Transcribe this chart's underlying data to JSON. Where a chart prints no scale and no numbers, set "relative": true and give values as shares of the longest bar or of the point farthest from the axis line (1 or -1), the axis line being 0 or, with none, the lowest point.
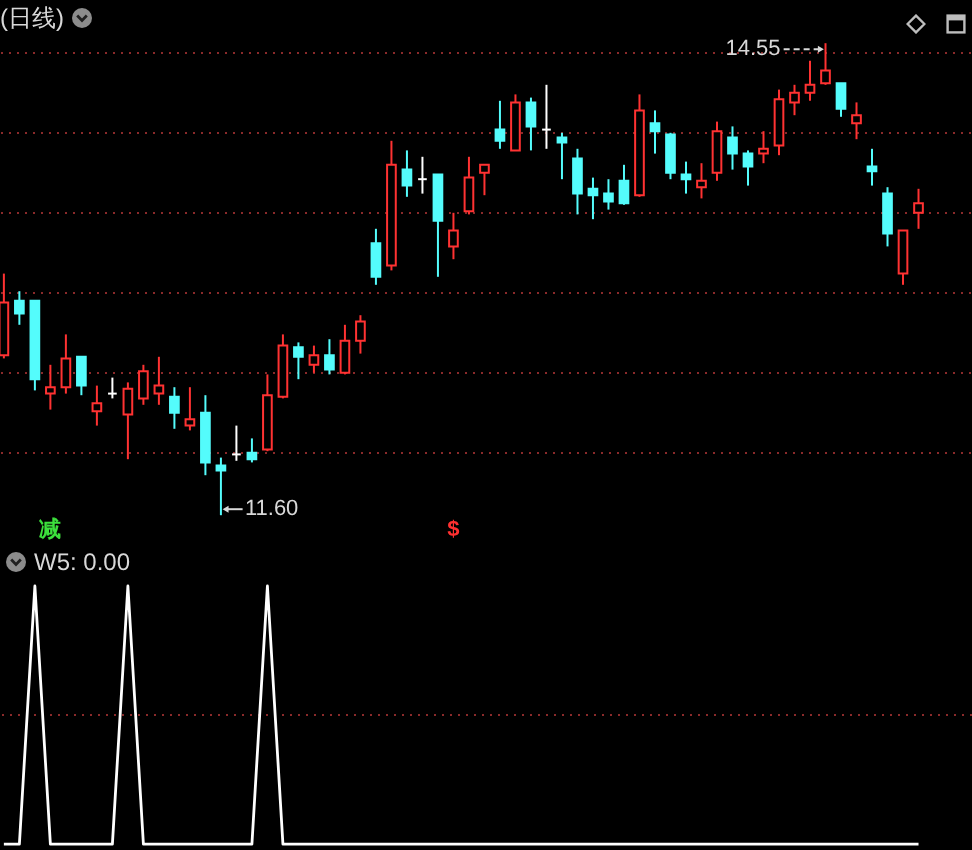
{
  "chart_data": [
    {
      "type": "candlestick",
      "title": "(日线)",
      "categories": [
        null,
        null,
        null,
        null,
        null,
        null,
        null,
        null,
        null,
        null,
        null,
        null,
        null,
        null,
        null,
        null,
        null,
        null,
        null,
        null,
        null,
        null,
        null,
        null,
        null,
        null,
        null,
        null,
        null,
        null,
        null,
        null,
        null,
        null,
        null,
        null,
        null,
        null,
        null,
        null,
        null,
        null,
        null,
        null,
        null,
        null,
        null,
        null,
        null,
        null,
        null,
        null,
        null,
        null,
        null,
        null,
        null,
        null,
        null,
        null
      ],
      "ohlc": [
        [
          12.6,
          13.11,
          12.58,
          12.93
        ],
        [
          12.94,
          13.0,
          12.79,
          12.86
        ],
        [
          12.94,
          12.94,
          12.38,
          12.45
        ],
        [
          12.36,
          12.54,
          12.26,
          12.4
        ],
        [
          12.4,
          12.73,
          12.36,
          12.58
        ],
        [
          12.59,
          12.59,
          12.35,
          12.41
        ],
        [
          12.25,
          12.41,
          12.16,
          12.3
        ],
        [
          12.36,
          12.46,
          12.33,
          12.36
        ],
        [
          12.23,
          12.43,
          11.95,
          12.39
        ],
        [
          12.33,
          12.54,
          12.29,
          12.5
        ],
        [
          12.36,
          12.59,
          12.29,
          12.41
        ],
        [
          12.34,
          12.4,
          12.14,
          12.24
        ],
        [
          12.16,
          12.4,
          12.13,
          12.2
        ],
        [
          12.24,
          12.35,
          11.85,
          11.93
        ],
        [
          11.91,
          11.96,
          11.6,
          11.88
        ],
        [
          11.98,
          12.16,
          11.94,
          11.98
        ],
        [
          11.99,
          12.08,
          11.93,
          11.95
        ],
        [
          12.01,
          12.48,
          12.0,
          12.35
        ],
        [
          12.34,
          12.73,
          12.33,
          12.66
        ],
        [
          12.65,
          12.68,
          12.45,
          12.59
        ],
        [
          12.54,
          12.66,
          12.49,
          12.6
        ],
        [
          12.6,
          12.7,
          12.48,
          12.51
        ],
        [
          12.49,
          12.79,
          12.48,
          12.69
        ],
        [
          12.69,
          12.85,
          12.61,
          12.81
        ],
        [
          13.3,
          13.39,
          13.04,
          13.09
        ],
        [
          13.16,
          13.94,
          13.13,
          13.79
        ],
        [
          13.76,
          13.88,
          13.59,
          13.66
        ],
        [
          13.7,
          13.84,
          13.61,
          13.7
        ],
        [
          13.73,
          13.73,
          13.09,
          13.44
        ],
        [
          13.28,
          13.49,
          13.2,
          13.38
        ],
        [
          13.5,
          13.84,
          13.48,
          13.71
        ],
        [
          13.74,
          13.79,
          13.6,
          13.79
        ],
        [
          14.01,
          14.19,
          13.89,
          13.94
        ],
        [
          13.88,
          14.23,
          13.88,
          14.18
        ],
        [
          14.18,
          14.21,
          13.88,
          14.03
        ],
        [
          14.01,
          14.29,
          13.89,
          14.01
        ],
        [
          13.96,
          13.99,
          13.7,
          13.93
        ],
        [
          13.83,
          13.89,
          13.48,
          13.61
        ],
        [
          13.64,
          13.71,
          13.45,
          13.6
        ],
        [
          13.61,
          13.7,
          13.51,
          13.56
        ],
        [
          13.69,
          13.79,
          13.54,
          13.55
        ],
        [
          13.6,
          14.23,
          13.59,
          14.13
        ],
        [
          14.05,
          14.13,
          13.86,
          14.0
        ],
        [
          13.98,
          13.99,
          13.7,
          13.74
        ],
        [
          13.73,
          13.81,
          13.61,
          13.7
        ],
        [
          13.65,
          13.8,
          13.58,
          13.69
        ],
        [
          13.74,
          14.06,
          13.69,
          14.0
        ],
        [
          13.96,
          14.03,
          13.76,
          13.86
        ],
        [
          13.86,
          13.88,
          13.66,
          13.78
        ],
        [
          13.86,
          14.0,
          13.8,
          13.89
        ],
        [
          13.91,
          14.26,
          13.85,
          14.2
        ],
        [
          14.18,
          14.29,
          14.1,
          14.24
        ],
        [
          14.24,
          14.44,
          14.19,
          14.29
        ],
        [
          14.3,
          14.55,
          14.29,
          14.38
        ],
        [
          14.3,
          14.3,
          14.09,
          14.14
        ],
        [
          14.05,
          14.18,
          13.95,
          14.1
        ],
        [
          13.78,
          13.89,
          13.66,
          13.75
        ],
        [
          13.61,
          13.65,
          13.28,
          13.36
        ],
        [
          13.11,
          13.38,
          13.04,
          13.38
        ],
        [
          13.49,
          13.64,
          13.39,
          13.55
        ]
      ],
      "colors": [
        "#ff3232",
        "#54fcfc",
        "#54fcfc",
        "#ff3232",
        "#ff3232",
        "#54fcfc",
        "#ff3232",
        "#ffffff",
        "#ff3232",
        "#ff3232",
        "#ff3232",
        "#54fcfc",
        "#ff3232",
        "#54fcfc",
        "#54fcfc",
        "#ffffff",
        "#54fcfc",
        "#ff3232",
        "#ff3232",
        "#54fcfc",
        "#ff3232",
        "#54fcfc",
        "#ff3232",
        "#ff3232",
        "#54fcfc",
        "#ff3232",
        "#54fcfc",
        "#ffffff",
        "#54fcfc",
        "#ff3232",
        "#ff3232",
        "#ff3232",
        "#54fcfc",
        "#ff3232",
        "#54fcfc",
        "#ffffff",
        "#54fcfc",
        "#54fcfc",
        "#54fcfc",
        "#54fcfc",
        "#54fcfc",
        "#ff3232",
        "#54fcfc",
        "#54fcfc",
        "#54fcfc",
        "#ff3232",
        "#ff3232",
        "#54fcfc",
        "#54fcfc",
        "#ff3232",
        "#ff3232",
        "#ff3232",
        "#ff3232",
        "#ff3232",
        "#54fcfc",
        "#ff3232",
        "#54fcfc",
        "#54fcfc",
        "#ff3232",
        "#ff3232"
      ],
      "ylim": [
        11.42,
        14.82
      ],
      "yticks": [
        {
          "value": 12,
          "label": null
        },
        {
          "value": 12.5,
          "label": null
        },
        {
          "value": 13,
          "label": null
        },
        {
          "value": 13.5,
          "label": null
        },
        {
          "value": 14,
          "label": null
        },
        {
          "value": 14.5,
          "label": null
        }
      ],
      "grid": "y",
      "annotations": [
        "14.55",
        "11.60",
        "减",
        "$"
      ]
    },
    {
      "type": "line",
      "title": "W5: 0.00",
      "relative": true,
      "color": "#ffffff",
      "categories": [
        null,
        null,
        null,
        null,
        null,
        null,
        null,
        null,
        null,
        null,
        null,
        null,
        null,
        null,
        null,
        null,
        null,
        null,
        null,
        null,
        null,
        null,
        null,
        null,
        null,
        null,
        null,
        null,
        null,
        null,
        null,
        null,
        null,
        null,
        null,
        null,
        null,
        null,
        null,
        null,
        null,
        null,
        null,
        null,
        null,
        null,
        null,
        null,
        null,
        null,
        null,
        null,
        null,
        null,
        null,
        null,
        null,
        null,
        null,
        null
      ],
      "values": [
        0,
        0,
        1,
        0,
        0,
        0,
        0,
        0,
        1,
        0,
        0,
        0,
        0,
        0,
        0,
        0,
        0,
        1,
        0,
        0,
        0,
        0,
        0,
        0,
        0,
        0,
        0,
        0,
        0,
        0,
        0,
        0,
        0,
        0,
        0,
        0,
        0,
        0,
        0,
        0,
        0,
        0,
        0,
        0,
        0,
        0,
        0,
        0,
        0,
        0,
        0,
        0,
        0,
        0,
        0,
        0,
        0,
        0,
        0,
        0
      ],
      "ref_lines": [
        {
          "axis": "y",
          "value": 0.5,
          "color": "#8a2a2a",
          "line_style": "dotted"
        }
      ]
    }
  ]
}
